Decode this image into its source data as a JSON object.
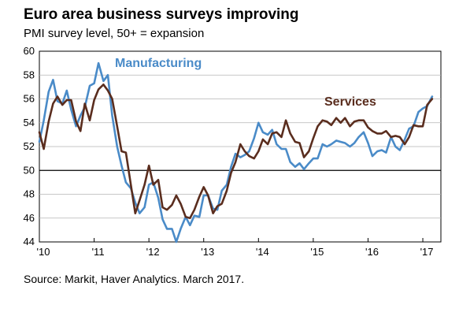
{
  "title": "Euro area business surveys improving",
  "subtitle": "PMI survey level, 50+ = expansion",
  "source": "Source: Markit, Haver Analytics. March 2017.",
  "chart_data": {
    "type": "line",
    "ylim": [
      44,
      60
    ],
    "yticks": [
      44,
      46,
      48,
      50,
      52,
      54,
      56,
      58,
      60
    ],
    "xlim": [
      2010.0,
      2017.33
    ],
    "xticks": [
      {
        "value": 2010,
        "label": "'10"
      },
      {
        "value": 2011,
        "label": "'11"
      },
      {
        "value": 2012,
        "label": "'12"
      },
      {
        "value": 2013,
        "label": "'13"
      },
      {
        "value": 2014,
        "label": "'14"
      },
      {
        "value": 2015,
        "label": "'15"
      },
      {
        "value": 2016,
        "label": "'16"
      },
      {
        "value": 2017,
        "label": "'17"
      }
    ],
    "reference_line": 50,
    "grid": "horizontal",
    "series": [
      {
        "name": "Manufacturing",
        "color": "#4a8bc8",
        "x": [
          2010.0,
          2010.08,
          2010.17,
          2010.25,
          2010.33,
          2010.42,
          2010.5,
          2010.58,
          2010.67,
          2010.75,
          2010.83,
          2010.92,
          2011.0,
          2011.08,
          2011.17,
          2011.25,
          2011.33,
          2011.42,
          2011.5,
          2011.58,
          2011.67,
          2011.75,
          2011.83,
          2011.92,
          2012.0,
          2012.08,
          2012.17,
          2012.25,
          2012.33,
          2012.42,
          2012.5,
          2012.58,
          2012.67,
          2012.75,
          2012.83,
          2012.92,
          2013.0,
          2013.08,
          2013.17,
          2013.25,
          2013.33,
          2013.42,
          2013.5,
          2013.58,
          2013.67,
          2013.75,
          2013.83,
          2013.92,
          2014.0,
          2014.08,
          2014.17,
          2014.25,
          2014.33,
          2014.42,
          2014.5,
          2014.58,
          2014.67,
          2014.75,
          2014.83,
          2014.92,
          2015.0,
          2015.08,
          2015.17,
          2015.25,
          2015.33,
          2015.42,
          2015.5,
          2015.58,
          2015.67,
          2015.75,
          2015.83,
          2015.92,
          2016.0,
          2016.08,
          2016.17,
          2016.25,
          2016.33,
          2016.42,
          2016.5,
          2016.58,
          2016.67,
          2016.75,
          2016.83,
          2016.92,
          2017.0,
          2017.08,
          2017.17
        ],
        "values": [
          52.4,
          54.2,
          56.6,
          57.6,
          55.8,
          55.6,
          56.7,
          55.1,
          53.7,
          54.6,
          55.3,
          57.1,
          57.3,
          59.0,
          57.5,
          58.0,
          54.6,
          52.0,
          50.4,
          49.0,
          48.5,
          47.3,
          46.4,
          46.9,
          48.8,
          49.0,
          47.7,
          45.9,
          45.1,
          45.1,
          44.0,
          45.1,
          46.1,
          45.4,
          46.2,
          46.1,
          47.9,
          47.9,
          46.8,
          46.7,
          48.3,
          48.8,
          50.3,
          51.4,
          51.1,
          51.3,
          51.6,
          52.7,
          54.0,
          53.2,
          53.0,
          53.4,
          52.2,
          51.8,
          51.8,
          50.7,
          50.3,
          50.6,
          50.1,
          50.6,
          51.0,
          51.0,
          52.2,
          52.0,
          52.2,
          52.5,
          52.4,
          52.3,
          52.0,
          52.3,
          52.8,
          53.2,
          52.3,
          51.2,
          51.6,
          51.7,
          51.5,
          52.8,
          52.0,
          51.7,
          52.6,
          53.5,
          53.7,
          54.9,
          55.2,
          55.4,
          56.2
        ]
      },
      {
        "name": "Services",
        "color": "#5a2d1e",
        "x": [
          2010.0,
          2010.08,
          2010.17,
          2010.25,
          2010.33,
          2010.42,
          2010.5,
          2010.58,
          2010.67,
          2010.75,
          2010.83,
          2010.92,
          2011.0,
          2011.08,
          2011.17,
          2011.25,
          2011.33,
          2011.42,
          2011.5,
          2011.58,
          2011.67,
          2011.75,
          2011.83,
          2011.92,
          2012.0,
          2012.08,
          2012.17,
          2012.25,
          2012.33,
          2012.42,
          2012.5,
          2012.58,
          2012.67,
          2012.75,
          2012.83,
          2012.92,
          2013.0,
          2013.08,
          2013.17,
          2013.25,
          2013.33,
          2013.42,
          2013.5,
          2013.58,
          2013.67,
          2013.75,
          2013.83,
          2013.92,
          2014.0,
          2014.08,
          2014.17,
          2014.25,
          2014.33,
          2014.42,
          2014.5,
          2014.58,
          2014.67,
          2014.75,
          2014.83,
          2014.92,
          2015.0,
          2015.08,
          2015.17,
          2015.25,
          2015.33,
          2015.42,
          2015.5,
          2015.58,
          2015.67,
          2015.75,
          2015.83,
          2015.92,
          2016.0,
          2016.08,
          2016.17,
          2016.25,
          2016.33,
          2016.42,
          2016.5,
          2016.58,
          2016.67,
          2016.75,
          2016.83,
          2016.92,
          2017.0,
          2017.08,
          2017.17
        ],
        "values": [
          53.2,
          51.8,
          54.1,
          55.6,
          56.2,
          55.5,
          55.9,
          55.9,
          54.1,
          53.3,
          55.6,
          54.2,
          55.9,
          56.8,
          57.2,
          56.7,
          56.0,
          53.7,
          51.6,
          51.5,
          48.8,
          46.4,
          47.5,
          48.8,
          50.4,
          48.8,
          49.2,
          46.9,
          46.7,
          47.1,
          47.9,
          47.2,
          46.1,
          46.0,
          46.7,
          47.8,
          48.6,
          47.9,
          46.4,
          47.0,
          47.2,
          48.3,
          49.8,
          50.7,
          52.2,
          51.6,
          51.2,
          51.0,
          51.6,
          52.6,
          52.2,
          53.1,
          53.2,
          52.8,
          54.2,
          53.1,
          52.4,
          52.3,
          51.1,
          51.6,
          52.7,
          53.7,
          54.2,
          54.1,
          53.8,
          54.4,
          54.0,
          54.4,
          53.7,
          54.1,
          54.2,
          54.2,
          53.6,
          53.3,
          53.1,
          53.1,
          53.3,
          52.8,
          52.9,
          52.8,
          52.2,
          52.8,
          53.8,
          53.7,
          53.7,
          55.5,
          56.0
        ]
      }
    ]
  }
}
